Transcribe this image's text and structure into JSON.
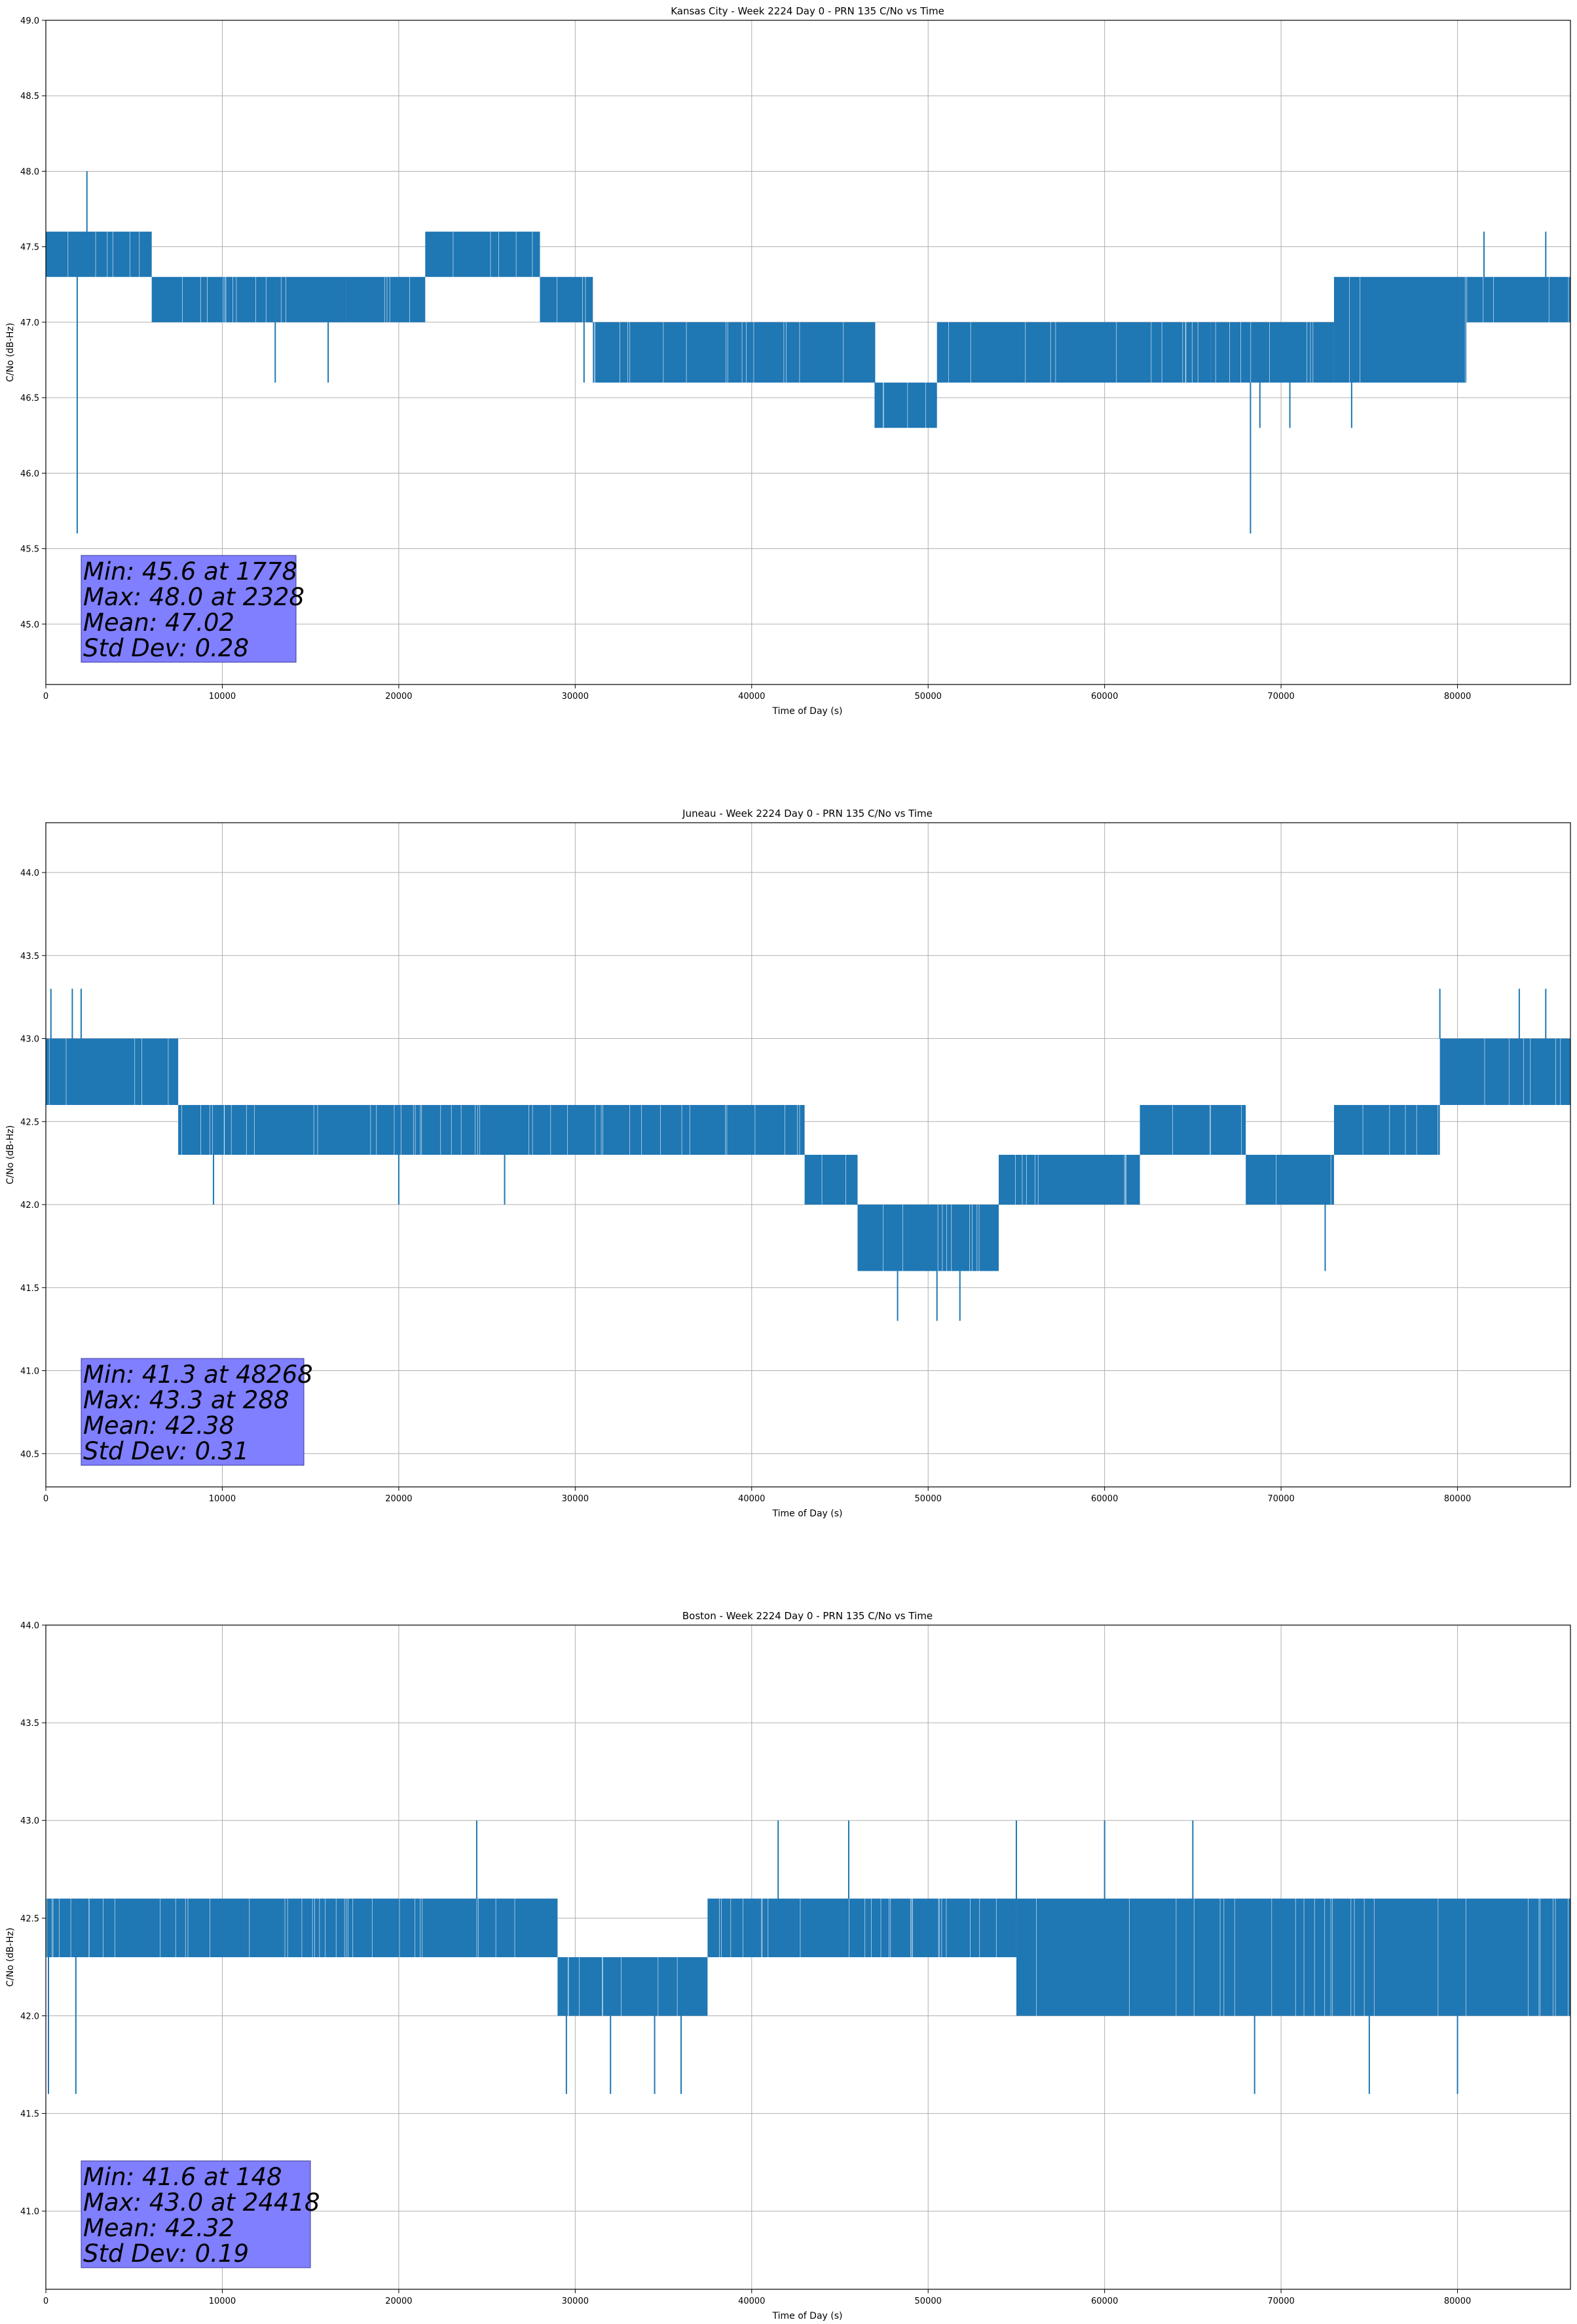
{
  "colors": {
    "series": "#1f77b4",
    "grid": "#b0b0b0",
    "axis": "#000000",
    "stats_box_fill": "#7f7fff",
    "stats_box_edge": "#3a3a9a"
  },
  "chart_data": [
    {
      "type": "line",
      "title": "Kansas City - Week 2224 Day 0 - PRN 135 C/No vs Time",
      "xlabel": "Time of Day (s)",
      "ylabel": "C/No (dB-Hz)",
      "xlim": [
        0,
        86400
      ],
      "ylim": [
        44.6,
        49.0
      ],
      "xticks": [
        0,
        10000,
        20000,
        30000,
        40000,
        50000,
        60000,
        70000,
        80000
      ],
      "xtick_labels": [
        "0",
        "10000",
        "20000",
        "30000",
        "40000",
        "50000",
        "60000",
        "70000",
        "80000"
      ],
      "yticks": [
        45.0,
        45.5,
        46.0,
        46.5,
        47.0,
        47.5,
        48.0,
        48.5,
        49.0
      ],
      "ytick_labels": [
        "45.0",
        "45.5",
        "46.0",
        "46.5",
        "47.0",
        "47.5",
        "48.0",
        "48.5",
        "49.0"
      ],
      "grid": true,
      "stats_box": [
        "Min: 45.6 at 1778",
        "Max: 48.0 at 2328",
        "Mean: 47.02",
        "Std Dev: 0.28"
      ],
      "stats_box_placement": "lower-left",
      "bands": [
        {
          "x": [
            0,
            6000
          ],
          "y": [
            47.3,
            47.6
          ]
        },
        {
          "x": [
            6000,
            17000
          ],
          "y": [
            47.0,
            47.3
          ]
        },
        {
          "x": [
            17000,
            21500
          ],
          "y": [
            47.0,
            47.3
          ]
        },
        {
          "x": [
            21500,
            28000
          ],
          "y": [
            47.3,
            47.6
          ]
        },
        {
          "x": [
            28000,
            31000
          ],
          "y": [
            47.0,
            47.3
          ]
        },
        {
          "x": [
            31000,
            47000
          ],
          "y": [
            46.6,
            47.0
          ]
        },
        {
          "x": [
            47000,
            50500
          ],
          "y": [
            46.3,
            46.6
          ]
        },
        {
          "x": [
            50500,
            66000
          ],
          "y": [
            46.6,
            47.0
          ]
        },
        {
          "x": [
            66000,
            73000
          ],
          "y": [
            46.6,
            47.0
          ]
        },
        {
          "x": [
            73000,
            80500
          ],
          "y": [
            46.6,
            47.3
          ]
        },
        {
          "x": [
            80500,
            86400
          ],
          "y": [
            47.0,
            47.3
          ]
        }
      ],
      "spikes": [
        {
          "x": 1778,
          "y": 45.6
        },
        {
          "x": 2328,
          "y": 48.0
        },
        {
          "x": 68268,
          "y": 45.6
        },
        {
          "x": 13000,
          "y": 46.6
        },
        {
          "x": 16000,
          "y": 46.6
        },
        {
          "x": 30500,
          "y": 46.6
        },
        {
          "x": 47000,
          "y": 46.3
        },
        {
          "x": 68800,
          "y": 46.3
        },
        {
          "x": 70500,
          "y": 46.3
        },
        {
          "x": 74000,
          "y": 46.3
        },
        {
          "x": 81500,
          "y": 47.6
        },
        {
          "x": 85000,
          "y": 47.6
        }
      ]
    },
    {
      "type": "line",
      "title": "Juneau - Week 2224 Day 0 - PRN 135 C/No vs Time",
      "xlabel": "Time of Day (s)",
      "ylabel": "C/No (dB-Hz)",
      "xlim": [
        0,
        86400
      ],
      "ylim": [
        40.3,
        44.3
      ],
      "xticks": [
        0,
        10000,
        20000,
        30000,
        40000,
        50000,
        60000,
        70000,
        80000
      ],
      "xtick_labels": [
        "0",
        "10000",
        "20000",
        "30000",
        "40000",
        "50000",
        "60000",
        "70000",
        "80000"
      ],
      "yticks": [
        40.5,
        41.0,
        41.5,
        42.0,
        42.5,
        43.0,
        43.5,
        44.0
      ],
      "ytick_labels": [
        "40.5",
        "41.0",
        "41.5",
        "42.0",
        "42.5",
        "43.0",
        "43.5",
        "44.0"
      ],
      "grid": true,
      "stats_box": [
        "Min: 41.3 at 48268",
        "Max: 43.3 at 288",
        "Mean: 42.38",
        "Std Dev: 0.31"
      ],
      "stats_box_placement": "lower-left",
      "bands": [
        {
          "x": [
            0,
            7500
          ],
          "y": [
            42.6,
            43.0
          ]
        },
        {
          "x": [
            7500,
            36000
          ],
          "y": [
            42.3,
            42.6
          ]
        },
        {
          "x": [
            36000,
            43000
          ],
          "y": [
            42.3,
            42.6
          ]
        },
        {
          "x": [
            43000,
            46000
          ],
          "y": [
            42.0,
            42.3
          ]
        },
        {
          "x": [
            46000,
            54000
          ],
          "y": [
            41.6,
            42.0
          ]
        },
        {
          "x": [
            54000,
            62000
          ],
          "y": [
            42.0,
            42.3
          ]
        },
        {
          "x": [
            62000,
            68000
          ],
          "y": [
            42.3,
            42.6
          ]
        },
        {
          "x": [
            68000,
            73000
          ],
          "y": [
            42.0,
            42.3
          ]
        },
        {
          "x": [
            73000,
            79000
          ],
          "y": [
            42.3,
            42.6
          ]
        },
        {
          "x": [
            79000,
            86400
          ],
          "y": [
            42.6,
            43.0
          ]
        }
      ],
      "spikes": [
        {
          "x": 288,
          "y": 43.3
        },
        {
          "x": 1500,
          "y": 43.3
        },
        {
          "x": 2000,
          "y": 43.3
        },
        {
          "x": 48268,
          "y": 41.3
        },
        {
          "x": 50500,
          "y": 41.3
        },
        {
          "x": 51800,
          "y": 41.3
        },
        {
          "x": 72500,
          "y": 41.6
        },
        {
          "x": 79000,
          "y": 43.3
        },
        {
          "x": 83500,
          "y": 43.3
        },
        {
          "x": 85000,
          "y": 43.3
        },
        {
          "x": 9500,
          "y": 42.0
        },
        {
          "x": 20000,
          "y": 42.0
        },
        {
          "x": 26000,
          "y": 42.0
        }
      ]
    },
    {
      "type": "line",
      "title": "Boston - Week 2224 Day 0 - PRN 135 C/No vs Time",
      "xlabel": "Time of Day (s)",
      "ylabel": "C/No (dB-Hz)",
      "xlim": [
        0,
        86400
      ],
      "ylim": [
        40.6,
        44.0
      ],
      "xticks": [
        0,
        10000,
        20000,
        30000,
        40000,
        50000,
        60000,
        70000,
        80000
      ],
      "xtick_labels": [
        "0",
        "10000",
        "20000",
        "30000",
        "40000",
        "50000",
        "60000",
        "70000",
        "80000"
      ],
      "yticks": [
        41.0,
        41.5,
        42.0,
        42.5,
        43.0,
        43.5,
        44.0
      ],
      "ytick_labels": [
        "41.0",
        "41.5",
        "42.0",
        "42.5",
        "43.0",
        "43.5",
        "44.0"
      ],
      "grid": true,
      "stats_box": [
        "Min: 41.6 at 148",
        "Max: 43.0 at 24418",
        "Mean: 42.32",
        "Std Dev: 0.19"
      ],
      "stats_box_placement": "lower-left",
      "bands": [
        {
          "x": [
            0,
            29000
          ],
          "y": [
            42.3,
            42.6
          ]
        },
        {
          "x": [
            29000,
            37500
          ],
          "y": [
            42.0,
            42.3
          ]
        },
        {
          "x": [
            37500,
            55000
          ],
          "y": [
            42.3,
            42.6
          ]
        },
        {
          "x": [
            55000,
            86400
          ],
          "y": [
            42.0,
            42.6
          ]
        }
      ],
      "spikes": [
        {
          "x": 148,
          "y": 41.6
        },
        {
          "x": 1700,
          "y": 41.6
        },
        {
          "x": 24418,
          "y": 43.0
        },
        {
          "x": 29500,
          "y": 41.6
        },
        {
          "x": 32000,
          "y": 41.6
        },
        {
          "x": 34500,
          "y": 41.6
        },
        {
          "x": 36000,
          "y": 41.6
        },
        {
          "x": 41500,
          "y": 43.0
        },
        {
          "x": 45500,
          "y": 43.0
        },
        {
          "x": 55000,
          "y": 43.0
        },
        {
          "x": 60000,
          "y": 43.0
        },
        {
          "x": 65000,
          "y": 43.0
        },
        {
          "x": 68500,
          "y": 41.6
        },
        {
          "x": 75000,
          "y": 41.6
        },
        {
          "x": 80000,
          "y": 41.6
        }
      ]
    }
  ]
}
